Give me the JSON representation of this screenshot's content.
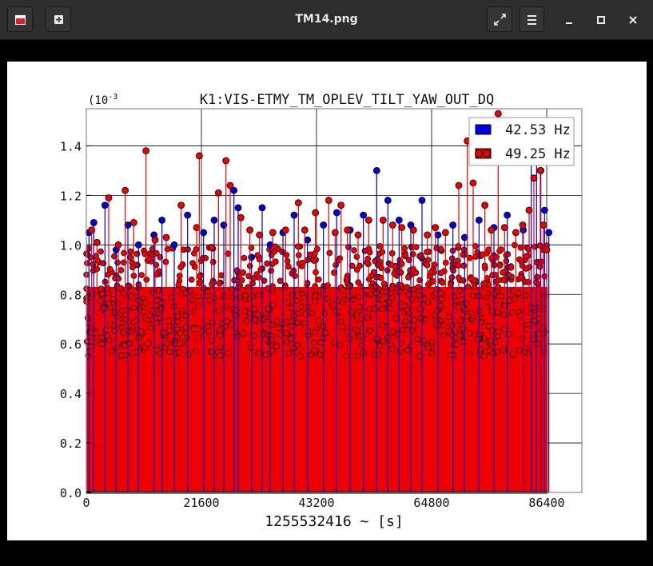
{
  "window": {
    "title": "TM14.png",
    "buttons": {
      "app_icon": "image-viewer-icon",
      "new_tab": "plus-icon",
      "fullscreen": "expand-icon",
      "menu": "hamburger-menu-icon",
      "minimize": "minimize-icon",
      "maximize": "maximize-icon",
      "close": "close-icon"
    }
  },
  "chart_data": {
    "type": "scatter",
    "style": "stem",
    "title": "K1:VIS-ETMY_TM_OPLEV_TILT_YAW_OUT_DQ",
    "xlabel": "1255532416 ~ [s]",
    "ylabel": "",
    "scale_note": "(10",
    "scale_exp": "-3",
    "xlim": [
      0,
      93000
    ],
    "ylim": [
      0,
      1.55
    ],
    "xticks": [
      0,
      21600,
      43200,
      64800,
      86400
    ],
    "xtick_labels": [
      "0",
      "21600",
      "43200",
      "64800",
      "86400"
    ],
    "yticks": [
      0,
      0.2,
      0.4,
      0.6,
      0.8,
      1.0,
      1.2,
      1.4
    ],
    "ytick_labels": [
      "0.0",
      "0.2",
      "0.4",
      "0.6",
      "0.8",
      "1.0",
      "1.2",
      "1.4"
    ],
    "grid": true,
    "legend_position": "top-right",
    "series": [
      {
        "name": "42.53 Hz",
        "color": "#0000dd",
        "points": [
          [
            500,
            1.05
          ],
          [
            1400,
            1.09
          ],
          [
            3500,
            1.16
          ],
          [
            5600,
            0.98
          ],
          [
            7800,
            1.08
          ],
          [
            9800,
            1.0
          ],
          [
            12700,
            1.04
          ],
          [
            14200,
            1.1
          ],
          [
            16500,
            1.0
          ],
          [
            19000,
            1.12
          ],
          [
            22000,
            1.05
          ],
          [
            24000,
            1.1
          ],
          [
            25800,
            1.08
          ],
          [
            27700,
            1.22
          ],
          [
            28500,
            1.15
          ],
          [
            31000,
            0.95
          ],
          [
            33000,
            1.15
          ],
          [
            34500,
            1.0
          ],
          [
            36900,
            1.05
          ],
          [
            39000,
            1.12
          ],
          [
            41500,
            1.02
          ],
          [
            44500,
            1.08
          ],
          [
            47000,
            1.13
          ],
          [
            49500,
            1.06
          ],
          [
            52000,
            1.12
          ],
          [
            54500,
            1.3
          ],
          [
            56600,
            1.18
          ],
          [
            58700,
            1.1
          ],
          [
            60900,
            1.08
          ],
          [
            63000,
            1.18
          ],
          [
            66000,
            1.04
          ],
          [
            68800,
            1.08
          ],
          [
            71000,
            1.03
          ],
          [
            73700,
            1.1
          ],
          [
            76500,
            1.07
          ],
          [
            79000,
            1.12
          ],
          [
            82000,
            1.06
          ],
          [
            83500,
            1.36
          ],
          [
            84500,
            1.42
          ],
          [
            85300,
            1.3
          ],
          [
            86000,
            1.14
          ],
          [
            86800,
            1.05
          ]
        ]
      },
      {
        "name": "49.25 Hz",
        "color": "#ee0000",
        "points": [
          [
            1000,
            1.06
          ],
          [
            2000,
            1.01
          ],
          [
            4200,
            1.19
          ],
          [
            6000,
            1.0
          ],
          [
            7300,
            1.22
          ],
          [
            8900,
            1.09
          ],
          [
            11200,
            1.38
          ],
          [
            12900,
            1.02
          ],
          [
            15000,
            1.03
          ],
          [
            17800,
            1.16
          ],
          [
            20700,
            1.07
          ],
          [
            21200,
            1.36
          ],
          [
            23500,
            0.99
          ],
          [
            24800,
            1.21
          ],
          [
            26200,
            1.34
          ],
          [
            27000,
            1.24
          ],
          [
            29000,
            1.11
          ],
          [
            30700,
            1.06
          ],
          [
            32500,
            1.04
          ],
          [
            35000,
            1.05
          ],
          [
            37400,
            1.06
          ],
          [
            39800,
            1.17
          ],
          [
            41000,
            1.06
          ],
          [
            43000,
            1.13
          ],
          [
            45500,
            1.18
          ],
          [
            46700,
            1.05
          ],
          [
            47800,
            1.16
          ],
          [
            49000,
            1.06
          ],
          [
            51000,
            1.04
          ],
          [
            53000,
            1.1
          ],
          [
            55700,
            1.1
          ],
          [
            57500,
            1.08
          ],
          [
            59200,
            1.07
          ],
          [
            61400,
            1.06
          ],
          [
            64000,
            1.04
          ],
          [
            65500,
            1.07
          ],
          [
            67400,
            1.05
          ],
          [
            69900,
            1.24
          ],
          [
            71500,
            1.42
          ],
          [
            72600,
            1.25
          ],
          [
            74800,
            1.16
          ],
          [
            76000,
            1.06
          ],
          [
            77300,
            1.53
          ],
          [
            78500,
            1.07
          ],
          [
            80600,
            1.05
          ],
          [
            81900,
            1.08
          ],
          [
            83100,
            1.14
          ],
          [
            84000,
            1.27
          ],
          [
            85200,
            1.3
          ],
          [
            85800,
            1.08
          ],
          [
            86400,
            0.98
          ]
        ]
      }
    ]
  }
}
